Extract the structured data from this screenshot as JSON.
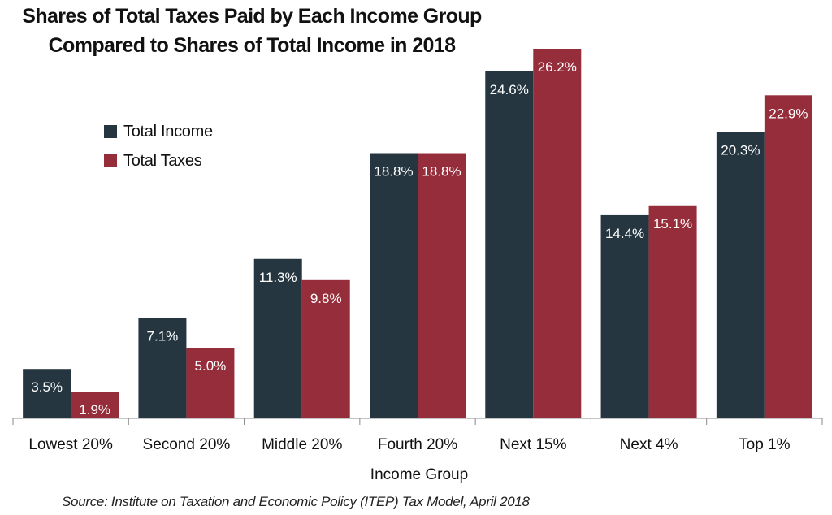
{
  "chart_data": {
    "type": "bar",
    "title_lines": [
      "Shares of Total Taxes Paid by Each Income Group",
      "Compared to Shares of Total Income in 2018"
    ],
    "xlabel": "Income Group",
    "ylabel": "",
    "categories": [
      "Lowest 20%",
      "Second 20%",
      "Middle 20%",
      "Fourth 20%",
      "Next 15%",
      "Next 4%",
      "Top 1%"
    ],
    "series": [
      {
        "name": "Total Income",
        "color": "#253640",
        "values": [
          3.5,
          7.1,
          11.3,
          18.8,
          24.6,
          14.4,
          20.3
        ],
        "labels": [
          "3.5%",
          "7.1%",
          "11.3%",
          "18.8%",
          "24.6%",
          "14.4%",
          "20.3%"
        ]
      },
      {
        "name": "Total Taxes",
        "color": "#962d3b",
        "values": [
          1.9,
          5.0,
          9.8,
          18.8,
          26.2,
          15.1,
          22.9
        ],
        "labels": [
          "1.9%",
          "5.0%",
          "9.8%",
          "18.8%",
          "26.2%",
          "15.1%",
          "22.9%"
        ]
      }
    ],
    "ylim": [
      0,
      26.2
    ],
    "grid": false,
    "legend_position": "top-left",
    "source": "Source: Institute on Taxation and Economic Policy (ITEP) Tax Model, April 2018"
  }
}
